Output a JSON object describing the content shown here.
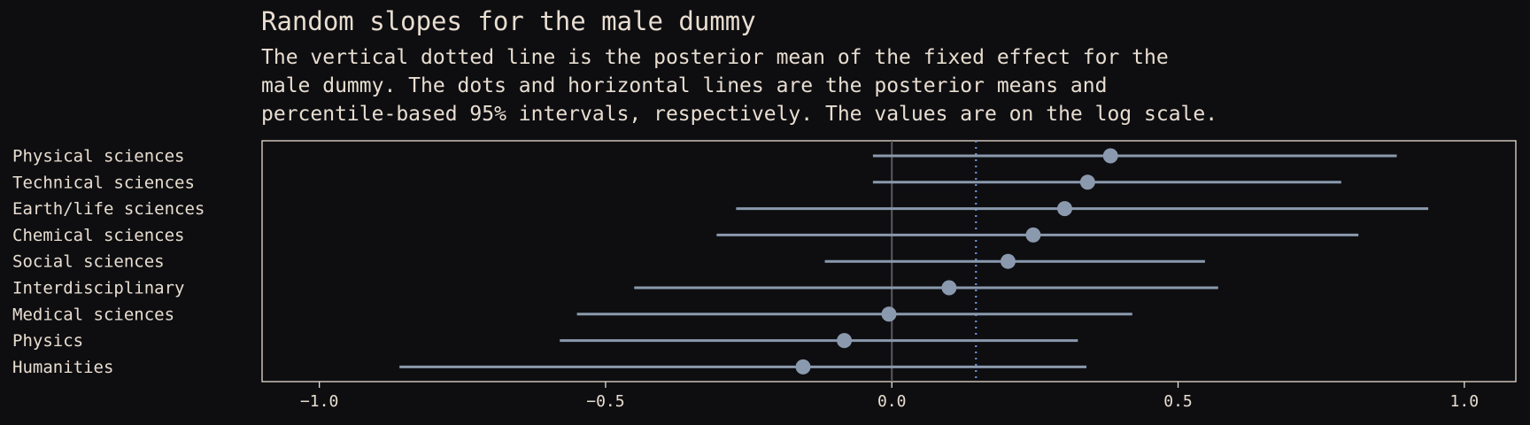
{
  "chart_data": {
    "type": "scatter",
    "title": "Random slopes for the male dummy",
    "subtitle": [
      "The vertical dotted line is the posterior mean of the fixed effect for the",
      "male dummy. The dots and horizontal lines are the posterior means and",
      "percentile-based 95% intervals, respectively. The values are on the log scale."
    ],
    "xlabel": "",
    "ylabel": "",
    "xlim": [
      -1.1,
      1.09
    ],
    "xticks": [
      -1.0,
      -0.5,
      0.0,
      0.5,
      1.0
    ],
    "xtick_labels": [
      "−1.0",
      "−0.5",
      "0.0",
      "0.5",
      "1.0"
    ],
    "fixed_effect_mean": 0.147,
    "zero_line": 0.0,
    "categories": [
      "Physical sciences",
      "Technical sciences",
      "Earth/life sciences",
      "Chemical sciences",
      "Social sciences",
      "Interdisciplinary",
      "Medical sciences",
      "Physics",
      "Humanities"
    ],
    "series": [
      {
        "mean": [
          0.382,
          0.342,
          0.302,
          0.247,
          0.203,
          0.1,
          -0.005,
          -0.083,
          -0.155
        ],
        "lower": [
          -0.033,
          -0.033,
          -0.272,
          -0.306,
          -0.117,
          -0.45,
          -0.55,
          -0.58,
          -0.86
        ],
        "upper": [
          0.882,
          0.785,
          0.937,
          0.815,
          0.547,
          0.57,
          0.42,
          0.325,
          0.34
        ]
      }
    ],
    "grid": false,
    "legend": "none",
    "colors": {
      "background": "#0e0e11",
      "frame": "#e8ddd0",
      "text": "#e8ddd0",
      "points": "#8a99ad",
      "fixed_effect_line": "#6f8fd6",
      "zero_line": "#5a5a5e"
    }
  }
}
